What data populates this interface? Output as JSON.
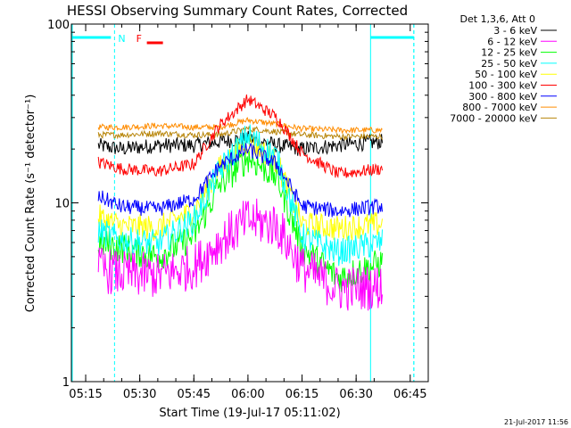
{
  "chart_data": {
    "type": "line",
    "title": "HESSI Observing Summary Count Rates, Corrected",
    "ylabel": "Corrected Count Rate (s⁻¹ detector⁻¹)",
    "xlabel": "Start Time (19-Jul-17 05:11:02)",
    "x_ticks": [
      "05:15",
      "05:30",
      "05:45",
      "06:00",
      "06:15",
      "06:30",
      "06:45"
    ],
    "y_ticks": [
      "1",
      "10",
      "100"
    ],
    "y_scale": "log",
    "ylim": [
      1,
      100
    ],
    "xlim": [
      "05:11:02",
      "06:50:00"
    ],
    "legend_title": "Det 1,3,6, Att 0",
    "legend_position": "right",
    "data_start": "05:18:30",
    "data_end": "06:37:30",
    "series": [
      {
        "name": "3 - 6 keV",
        "color": "#000000",
        "x": [
          "05:18",
          "05:25",
          "05:35",
          "05:45",
          "05:52",
          "06:00",
          "06:08",
          "06:15",
          "06:25",
          "06:37"
        ],
        "y": [
          21,
          20,
          21,
          21,
          22,
          23,
          21,
          20,
          21,
          22
        ]
      },
      {
        "name": "6 - 12 keV",
        "color": "#ff00ff",
        "x": [
          "05:18",
          "05:25",
          "05:35",
          "05:45",
          "05:52",
          "06:00",
          "06:08",
          "06:15",
          "06:25",
          "06:37"
        ],
        "y": [
          4.3,
          4.0,
          3.9,
          4.4,
          6.0,
          8.0,
          7.5,
          4.3,
          3.3,
          3.4
        ]
      },
      {
        "name": "12 - 25 keV",
        "color": "#00ff00",
        "x": [
          "05:18",
          "05:25",
          "05:35",
          "05:45",
          "05:52",
          "06:00",
          "06:08",
          "06:15",
          "06:25",
          "06:37"
        ],
        "y": [
          6.0,
          5.6,
          5.0,
          6.5,
          12.5,
          18.0,
          14.0,
          5.6,
          3.8,
          4.6
        ]
      },
      {
        "name": "25 - 50 keV",
        "color": "#00ffff",
        "x": [
          "05:18",
          "05:25",
          "05:35",
          "05:45",
          "05:52",
          "06:00",
          "06:08",
          "06:15",
          "06:25",
          "06:37"
        ],
        "y": [
          7.0,
          6.2,
          5.9,
          8.0,
          15.0,
          24.0,
          18.0,
          6.5,
          5.3,
          6.0
        ]
      },
      {
        "name": "50 - 100 keV",
        "color": "#ffff00",
        "x": [
          "05:18",
          "05:25",
          "05:35",
          "05:45",
          "05:52",
          "06:00",
          "06:08",
          "06:15",
          "06:25",
          "06:37"
        ],
        "y": [
          8.4,
          7.4,
          7.2,
          9.0,
          15.5,
          22.0,
          17.0,
          7.6,
          7.2,
          7.6
        ]
      },
      {
        "name": "100 - 300 keV",
        "color": "#ff0000",
        "x": [
          "05:18",
          "05:25",
          "05:35",
          "05:45",
          "05:52",
          "06:00",
          "06:08",
          "06:15",
          "06:25",
          "06:37"
        ],
        "y": [
          17.0,
          15.5,
          15.0,
          16.5,
          27.0,
          38.0,
          30.0,
          19.0,
          14.5,
          15.5
        ]
      },
      {
        "name": "300 - 800 keV",
        "color": "#0000ff",
        "x": [
          "05:18",
          "05:25",
          "05:35",
          "05:45",
          "05:52",
          "06:00",
          "06:08",
          "06:15",
          "06:25",
          "06:37"
        ],
        "y": [
          11.0,
          9.5,
          9.2,
          10.5,
          16.0,
          20.0,
          16.5,
          9.6,
          9.0,
          9.6
        ]
      },
      {
        "name": "800 - 7000 keV",
        "color": "#ff8c00",
        "x": [
          "05:18",
          "05:25",
          "05:35",
          "05:45",
          "05:52",
          "06:00",
          "06:08",
          "06:15",
          "06:25",
          "06:37"
        ],
        "y": [
          26.5,
          26.5,
          27.0,
          26.5,
          26.5,
          29.0,
          27.5,
          26.0,
          25.5,
          25.5
        ]
      },
      {
        "name": "7000 - 20000 keV",
        "color": "#b8860b",
        "x": [
          "05:18",
          "05:25",
          "05:35",
          "05:45",
          "05:52",
          "06:00",
          "06:08",
          "06:15",
          "06:25",
          "06:37"
        ],
        "y": [
          24.0,
          24.0,
          24.5,
          24.0,
          24.0,
          26.0,
          25.0,
          24.0,
          23.5,
          23.5
        ]
      }
    ],
    "annotations": [
      {
        "text": "N",
        "color": "#00ffff",
        "x": "05:22:00"
      },
      {
        "text": "F",
        "color": "#ff0000",
        "x": "05:29:00"
      }
    ],
    "night_intervals": [
      {
        "start": "05:11:02",
        "end": "05:22:00",
        "dashed_at": "05:23:00"
      },
      {
        "start": "06:34:00",
        "end": "06:46:00",
        "dashed_at": "06:46:00"
      }
    ],
    "grid": false
  },
  "timestamp": "21-Jul-2017 11:56"
}
